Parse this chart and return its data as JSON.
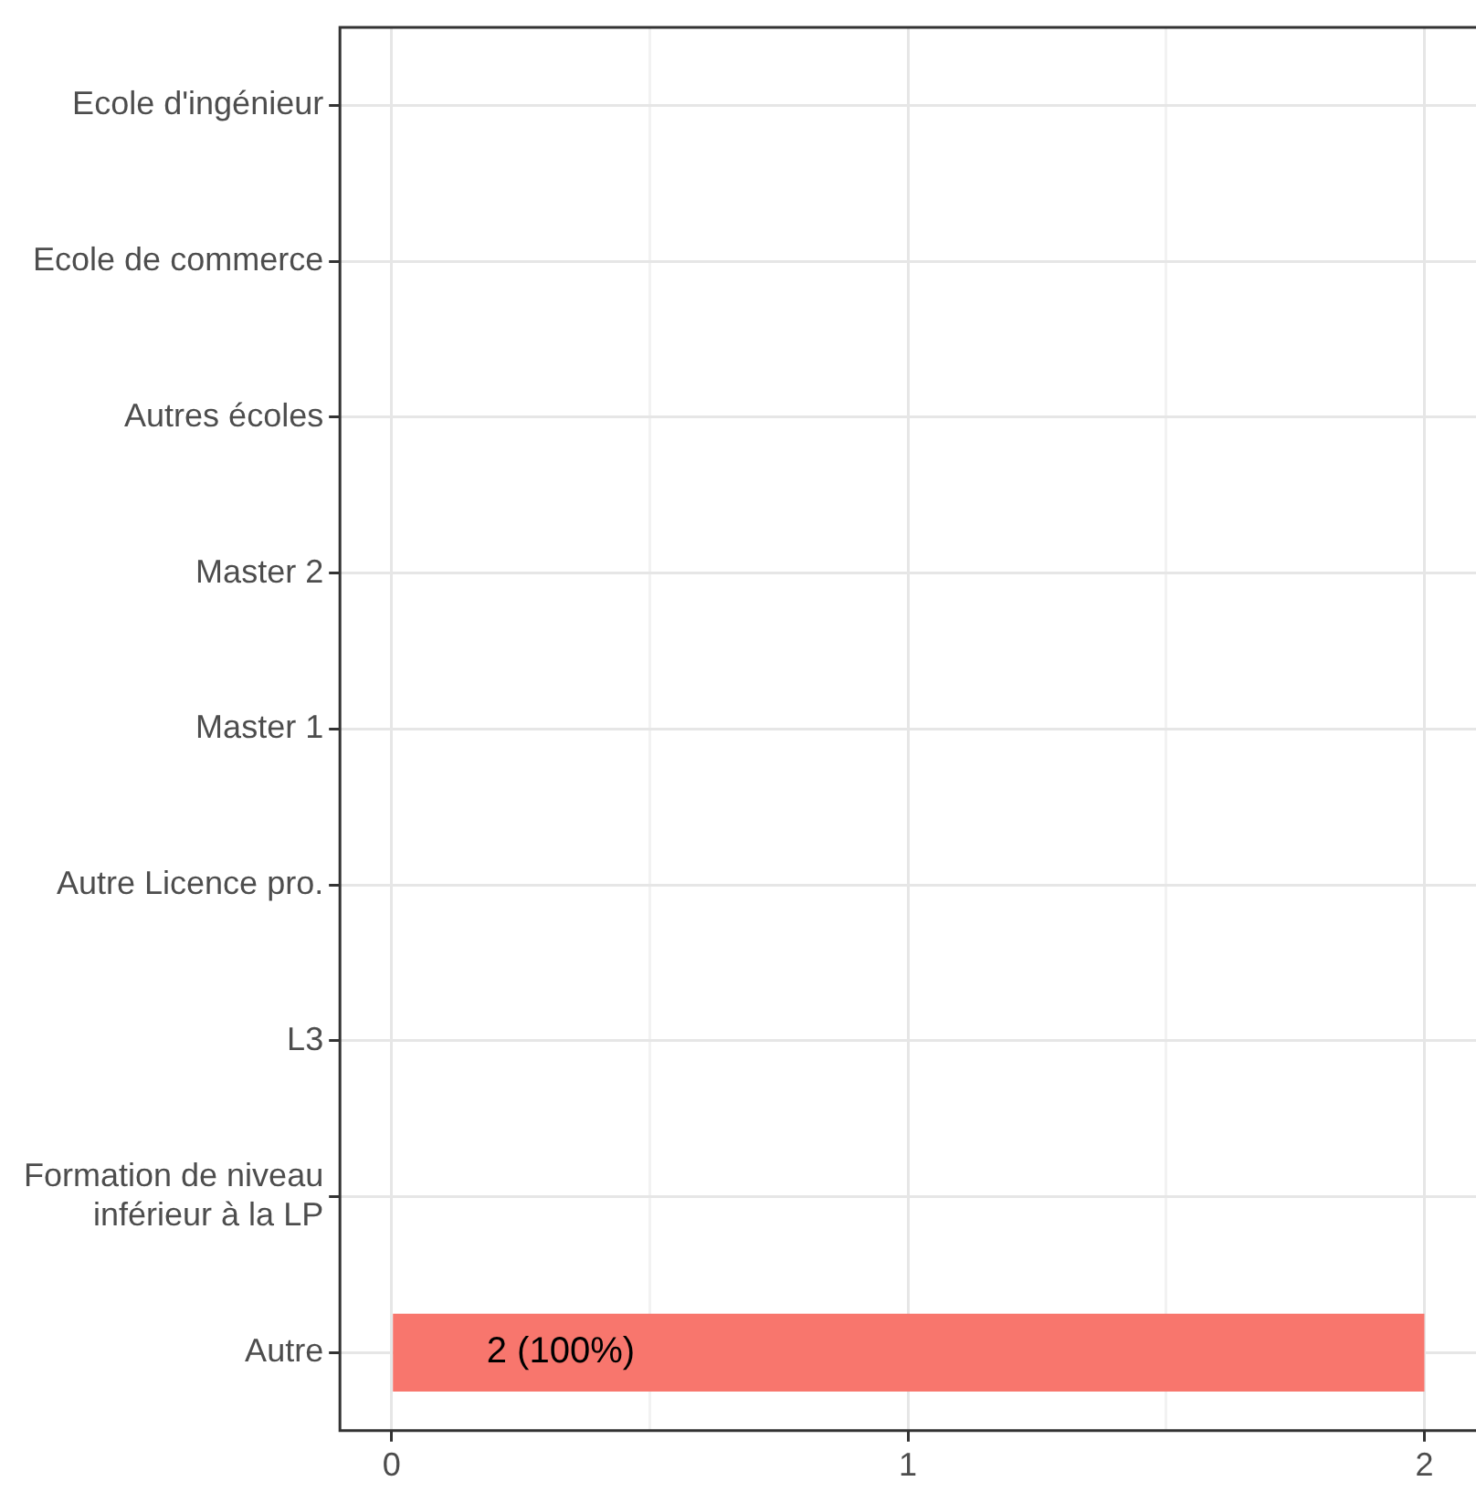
{
  "chart_data": {
    "type": "bar",
    "orientation": "horizontal",
    "categories": [
      "Ecole d'ingénieur",
      "Ecole de commerce",
      "Autres écoles",
      "Master 2",
      "Master 1",
      "Autre Licence pro.",
      "L3",
      "Formation de niveau\ninférieur à la LP",
      "Autre"
    ],
    "values": [
      0,
      0,
      0,
      0,
      0,
      0,
      0,
      0,
      2
    ],
    "value_labels": [
      null,
      null,
      null,
      null,
      null,
      null,
      null,
      null,
      "2 (100%)"
    ],
    "color": "#f8766d",
    "xlim": [
      -0.1,
      2.1
    ],
    "xticks": [
      0,
      {
        "value": 0.5,
        "label": null
      },
      1,
      {
        "value": 1.5,
        "label": null
      },
      2
    ],
    "grid": true,
    "legend": false
  }
}
